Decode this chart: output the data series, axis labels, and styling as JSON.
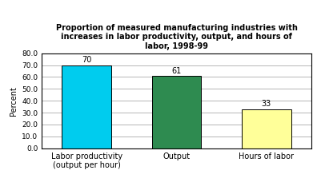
{
  "categories": [
    "Labor productivity\n(output per hour)",
    "Output",
    "Hours of labor"
  ],
  "values": [
    70,
    61,
    33
  ],
  "bar_colors": [
    "#00CCEE",
    "#2E8B50",
    "#FFFF99"
  ],
  "bar_edgecolors": [
    "#000000",
    "#000000",
    "#000000"
  ],
  "title": "Proportion of measured manufacturing industries with\nincreases in labor productivity, output, and hours of\nlabor, 1998-99",
  "ylabel": "Percent",
  "ylim": [
    0,
    80
  ],
  "yticks": [
    0.0,
    10.0,
    20.0,
    30.0,
    40.0,
    50.0,
    60.0,
    70.0,
    80.0
  ],
  "title_fontsize": 7.0,
  "label_fontsize": 7.0,
  "tick_fontsize": 6.5,
  "bar_label_fontsize": 7.0,
  "ylabel_fontsize": 7.0,
  "background_color": "#ffffff",
  "bar_width": 0.55
}
